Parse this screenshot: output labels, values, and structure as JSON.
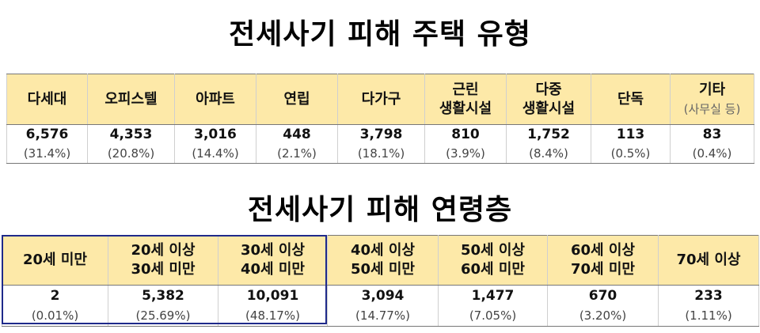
{
  "title1": "전세사기 피해 주택 유형",
  "title2": "전세사기 피해 연령층",
  "housing_types": [
    {
      "label": "다세대",
      "sub": "",
      "count": "6,576",
      "pct": "(31.4%)"
    },
    {
      "label": "오피스텔",
      "sub": "",
      "count": "4,353",
      "pct": "(20.8%)"
    },
    {
      "label": "아파트",
      "sub": "",
      "count": "3,016",
      "pct": "(14.4%)"
    },
    {
      "label": "연립",
      "sub": "",
      "count": "448",
      "pct": "(2.1%)"
    },
    {
      "label": "다가구",
      "sub": "",
      "count": "3,798",
      "pct": "(18.1%)"
    },
    {
      "label": "근린",
      "sub": "생활시설",
      "count": "810",
      "pct": "(3.9%)"
    },
    {
      "label": "다중",
      "sub": "생활시설",
      "count": "1,752",
      "pct": "(8.4%)"
    },
    {
      "label": "단독",
      "sub": "",
      "count": "113",
      "pct": "(0.5%)"
    },
    {
      "label": "기타",
      "sub": "(사무실 등)",
      "count": "83",
      "pct": "(0.4%)"
    }
  ],
  "age_groups": [
    {
      "line1": "20세 미만",
      "line2": "",
      "count": "2",
      "pct": "(0.01%)"
    },
    {
      "line1": "20세 이상",
      "line2": "30세 미만",
      "count": "5,382",
      "pct": "(25.69%)"
    },
    {
      "line1": "30세 이상",
      "line2": "40세 미만",
      "count": "10,091",
      "pct": "(48.17%)"
    },
    {
      "line1": "40세 이상",
      "line2": "50세 미만",
      "count": "3,094",
      "pct": "(14.77%)"
    },
    {
      "line1": "50세 이상",
      "line2": "60세 미만",
      "count": "1,477",
      "pct": "(7.05%)"
    },
    {
      "line1": "60세 이상",
      "line2": "70세 미만",
      "count": "670",
      "pct": "(3.20%)"
    },
    {
      "line1": "70세 이상",
      "line2": "",
      "count": "233",
      "pct": "(1.11%)"
    }
  ],
  "colors": {
    "header_bg": "#fde9a8",
    "highlight_border": "#1f2a8a"
  }
}
